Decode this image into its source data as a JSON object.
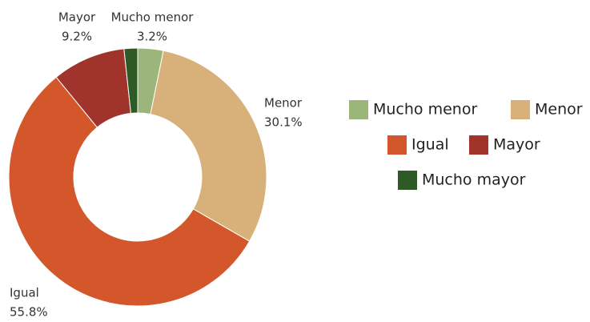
{
  "chart_data": {
    "type": "donut",
    "categories": [
      "Mucho menor",
      "Menor",
      "Igual",
      "Mayor",
      "Mucho mayor"
    ],
    "values": [
      3.2,
      30.1,
      55.8,
      9.2,
      1.7
    ],
    "value_labels": [
      "3.2%",
      "30.1%",
      "55.8%",
      "9.2%",
      null
    ],
    "colors": [
      "#9cb57b",
      "#d8b07a",
      "#d3572a",
      "#a0342c",
      "#2d5a25"
    ]
  }
}
